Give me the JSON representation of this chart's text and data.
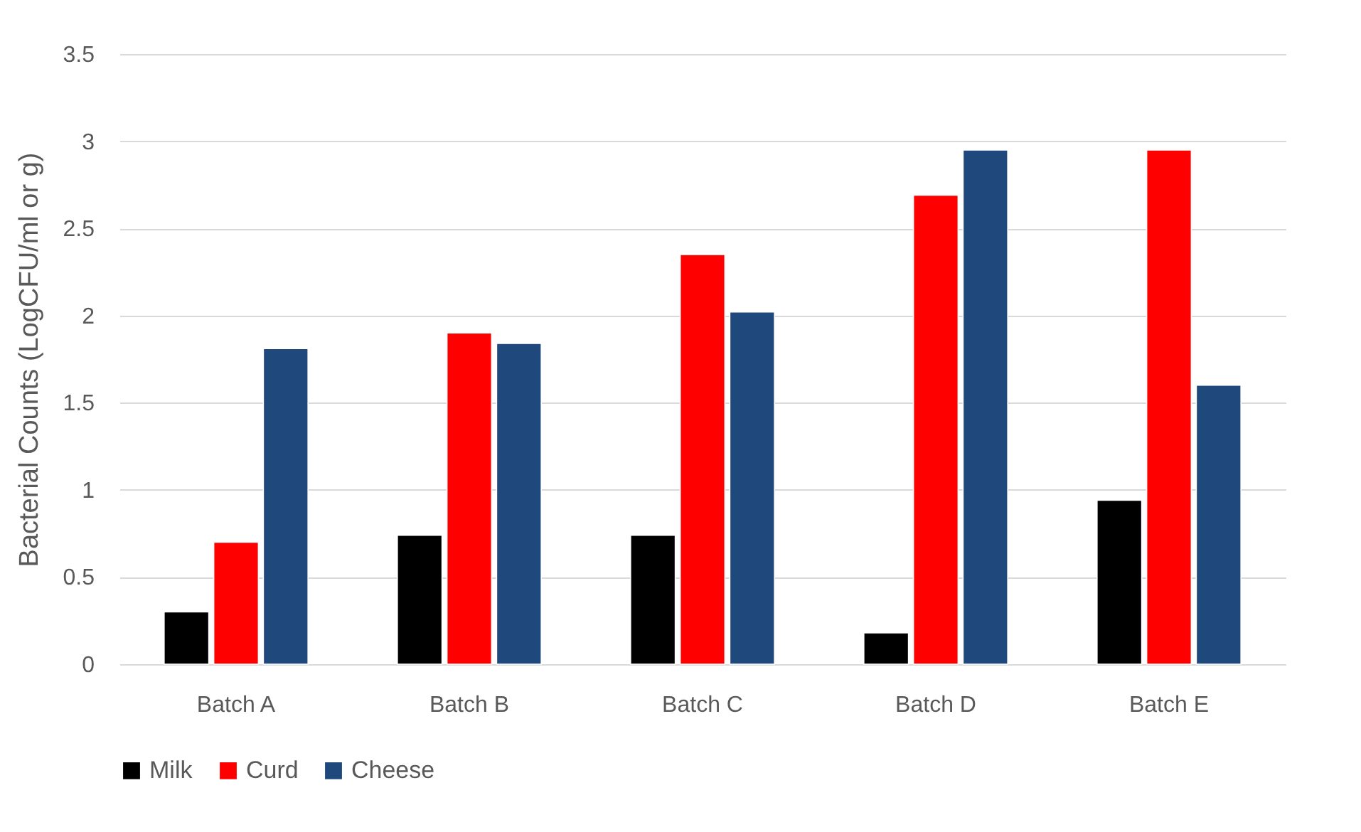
{
  "chart_data": {
    "type": "bar",
    "ylabel": "Bacterial Counts (LogCFU/ml or g)",
    "categories": [
      "Batch A",
      "Batch B",
      "Batch C",
      "Batch D",
      "Batch E"
    ],
    "series": [
      {
        "name": "Milk",
        "color": "#000000",
        "values": [
          0.3,
          0.74,
          0.74,
          0.18,
          0.94
        ]
      },
      {
        "name": "Curd",
        "color": "#ff0000",
        "values": [
          0.7,
          1.9,
          2.35,
          2.69,
          2.95
        ]
      },
      {
        "name": "Cheese",
        "color": "#1f497d",
        "values": [
          1.81,
          1.84,
          2.02,
          2.95,
          1.6
        ]
      }
    ],
    "ylim": [
      0,
      3.5
    ],
    "yticks": [
      0,
      0.5,
      1,
      1.5,
      2,
      2.5,
      3,
      3.5
    ],
    "grid": "y",
    "legend": "bottom"
  }
}
